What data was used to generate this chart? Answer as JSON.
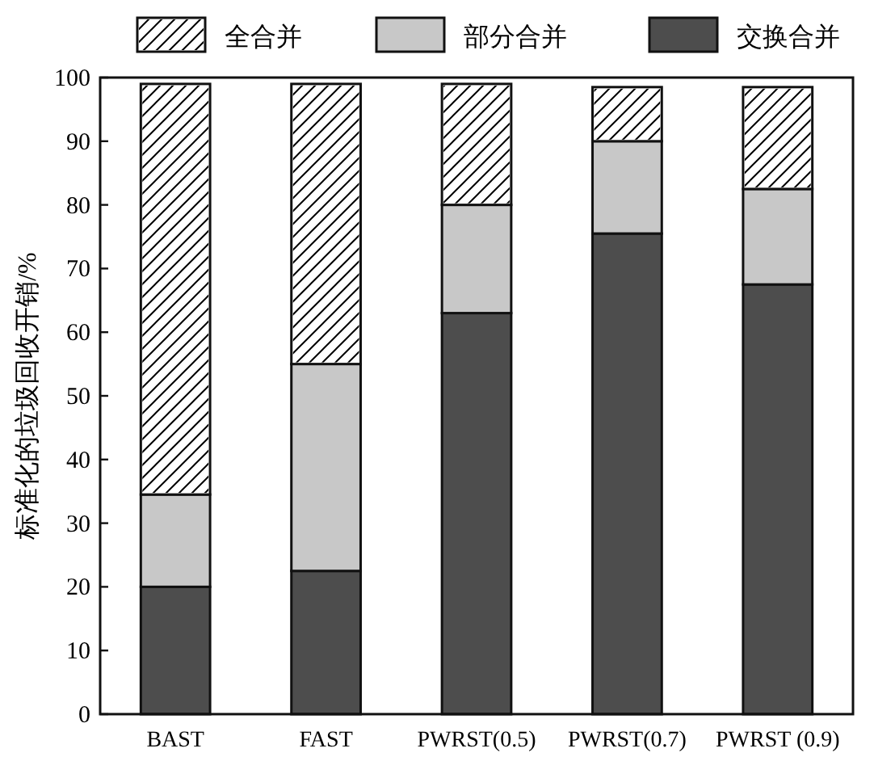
{
  "chart_data": {
    "type": "bar",
    "stacked": true,
    "categories": [
      "BAST",
      "FAST",
      "PWRST(0.5)",
      "PWRST(0.7)",
      "PWRST (0.9)"
    ],
    "ylabel": "标准化的垃圾回收开销/%",
    "ylim": [
      0,
      100
    ],
    "yticks": [
      0,
      10,
      20,
      30,
      40,
      50,
      60,
      70,
      80,
      90,
      100
    ],
    "legend": "top",
    "grid": false,
    "series": [
      {
        "name": "交换合并",
        "color": "#4d4d4d",
        "values": [
          20,
          22.5,
          63,
          75.5,
          67.5
        ]
      },
      {
        "name": "部分合并",
        "color": "#c8c8c8",
        "values": [
          14.5,
          32.5,
          17,
          14.5,
          15
        ]
      },
      {
        "name": "全合并",
        "color": "#ffffff",
        "values": [
          64.5,
          44,
          19,
          8.5,
          16
        ]
      }
    ]
  }
}
